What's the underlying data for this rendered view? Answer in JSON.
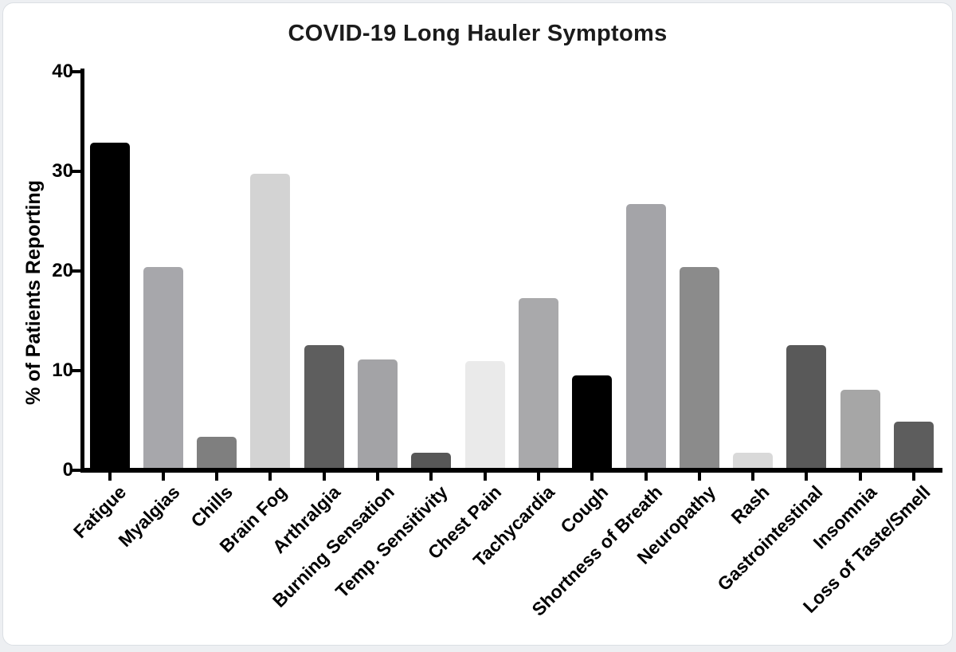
{
  "page": {
    "outer_background": "#edeff2",
    "card_background": "#ffffff",
    "card_border": "#dbdfe4"
  },
  "chart_data": {
    "type": "bar",
    "title": "COVID-19 Long Hauler Symptoms",
    "xlabel": "",
    "ylabel": "% of Patients Reporting",
    "ylim": [
      0,
      40
    ],
    "yticks": [
      0,
      10,
      20,
      30,
      40
    ],
    "grid": false,
    "legend": false,
    "axis_color": "#000000",
    "text_color": "#000000",
    "title_color": "#1b1b1b",
    "categories": [
      "Fatigue",
      "Myalgias",
      "Chills",
      "Brain Fog",
      "Arthralgia",
      "Burning Sensation",
      "Temp. Sensitivity",
      "Chest Pain",
      "Tachycardia",
      "Cough",
      "Shortness of Breath",
      "Neuropathy",
      "Rash",
      "Gastrointestinal",
      "Insomnia",
      "Loss of Taste/Smell"
    ],
    "values": [
      32.9,
      20.4,
      3.4,
      29.8,
      12.6,
      11.1,
      1.8,
      11,
      17.3,
      9.5,
      26.7,
      20.4,
      1.8,
      12.6,
      8.1,
      4.9
    ],
    "bar_colors": [
      "#000000",
      "#a7a7ab",
      "#7f7f7f",
      "#d3d3d3",
      "#5e5e5e",
      "#a3a3a6",
      "#575757",
      "#eaeaea",
      "#a9a9ab",
      "#000000",
      "#a4a4a8",
      "#8b8b8b",
      "#d9d9d9",
      "#595959",
      "#a6a6a6",
      "#5d5d5d"
    ]
  }
}
